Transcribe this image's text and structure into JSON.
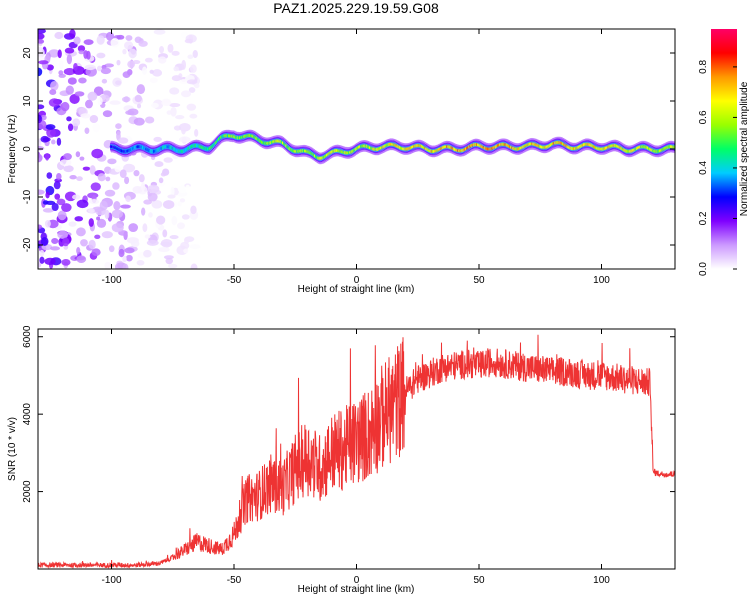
{
  "figure_title": "PAZ1.2025.229.19.59.G08",
  "chart_data": [
    {
      "type": "heatmap",
      "title": "PAZ1.2025.229.19.59.G08",
      "xlabel": "Height of straight line (km)",
      "ylabel": "Frequency (Hz)",
      "xlim": [
        -130,
        130
      ],
      "ylim": [
        -25,
        25
      ],
      "xticks": [
        -100,
        -50,
        0,
        50,
        100
      ],
      "yticks": [
        -20,
        -10,
        0,
        10,
        20
      ],
      "grid": false,
      "colorbar": {
        "label": "Normalized spectral amplitude",
        "range": [
          0,
          0.95
        ],
        "ticks": [
          0.0,
          0.2,
          0.4,
          0.6,
          0.8
        ],
        "colors": [
          "#ffffff",
          "#cc99ff",
          "#7f00ff",
          "#0000ff",
          "#00ccff",
          "#00ff66",
          "#99ff00",
          "#ffff00",
          "#ff9900",
          "#ff0000",
          "#ff0066"
        ]
      },
      "ridge": {
        "x": [
          -100,
          -90,
          -80,
          -70,
          -60,
          -55,
          -50,
          -45,
          -40,
          -35,
          -30,
          -25,
          -20,
          -15,
          -10,
          -5,
          0,
          10,
          20,
          30,
          40,
          50,
          60,
          70,
          80,
          90,
          100,
          110,
          120,
          130
        ],
        "freq": [
          0,
          0,
          0,
          0,
          0.5,
          2,
          3,
          2.5,
          2,
          1.5,
          1,
          0,
          -1,
          -1.5,
          -1,
          -0.5,
          0,
          0.5,
          0.5,
          0,
          0,
          0.5,
          0.5,
          0.5,
          1,
          0.5,
          0.5,
          0,
          0,
          0
        ],
        "amplitude": [
          0.3,
          0.4,
          0.45,
          0.5,
          0.55,
          0.6,
          0.65,
          0.65,
          0.65,
          0.7,
          0.7,
          0.7,
          0.65,
          0.7,
          0.7,
          0.7,
          0.7,
          0.75,
          0.8,
          0.8,
          0.85,
          0.85,
          0.85,
          0.8,
          0.85,
          0.8,
          0.8,
          0.75,
          0.7,
          0.7
        ]
      },
      "noise_region_x": [
        -130,
        -75
      ]
    },
    {
      "type": "line",
      "xlabel": "Height of straight line (km)",
      "ylabel": "SNR (10 * v/v)",
      "xlim": [
        -130,
        130
      ],
      "ylim": [
        0,
        6200
      ],
      "xticks": [
        -100,
        -50,
        0,
        50,
        100
      ],
      "yticks": [
        2000,
        4000,
        6000
      ],
      "grid": false,
      "color": "#ee3333",
      "series": [
        {
          "x": [
            -130,
            -110,
            -90,
            -80,
            -75,
            -70,
            -65,
            -60,
            -55,
            -50,
            -45,
            -40,
            -35,
            -30,
            -25,
            -20,
            -15,
            -10,
            -5,
            0,
            5,
            10,
            15,
            20,
            25,
            30,
            35,
            40,
            45,
            50,
            55,
            60,
            65,
            70,
            75,
            80,
            85,
            90,
            95,
            100,
            105,
            110,
            115,
            120,
            121,
            125,
            130
          ],
          "y": [
            100,
            100,
            100,
            150,
            300,
            500,
            700,
            600,
            500,
            900,
            1800,
            1900,
            2200,
            2100,
            2600,
            2900,
            2600,
            3000,
            3100,
            3300,
            3500,
            3900,
            4200,
            4600,
            4900,
            5050,
            5200,
            5250,
            5300,
            5250,
            5350,
            5300,
            5250,
            5200,
            5150,
            5100,
            5100,
            5050,
            5000,
            5000,
            4950,
            4900,
            4850,
            4800,
            2500,
            2450,
            2450
          ]
        }
      ]
    }
  ]
}
